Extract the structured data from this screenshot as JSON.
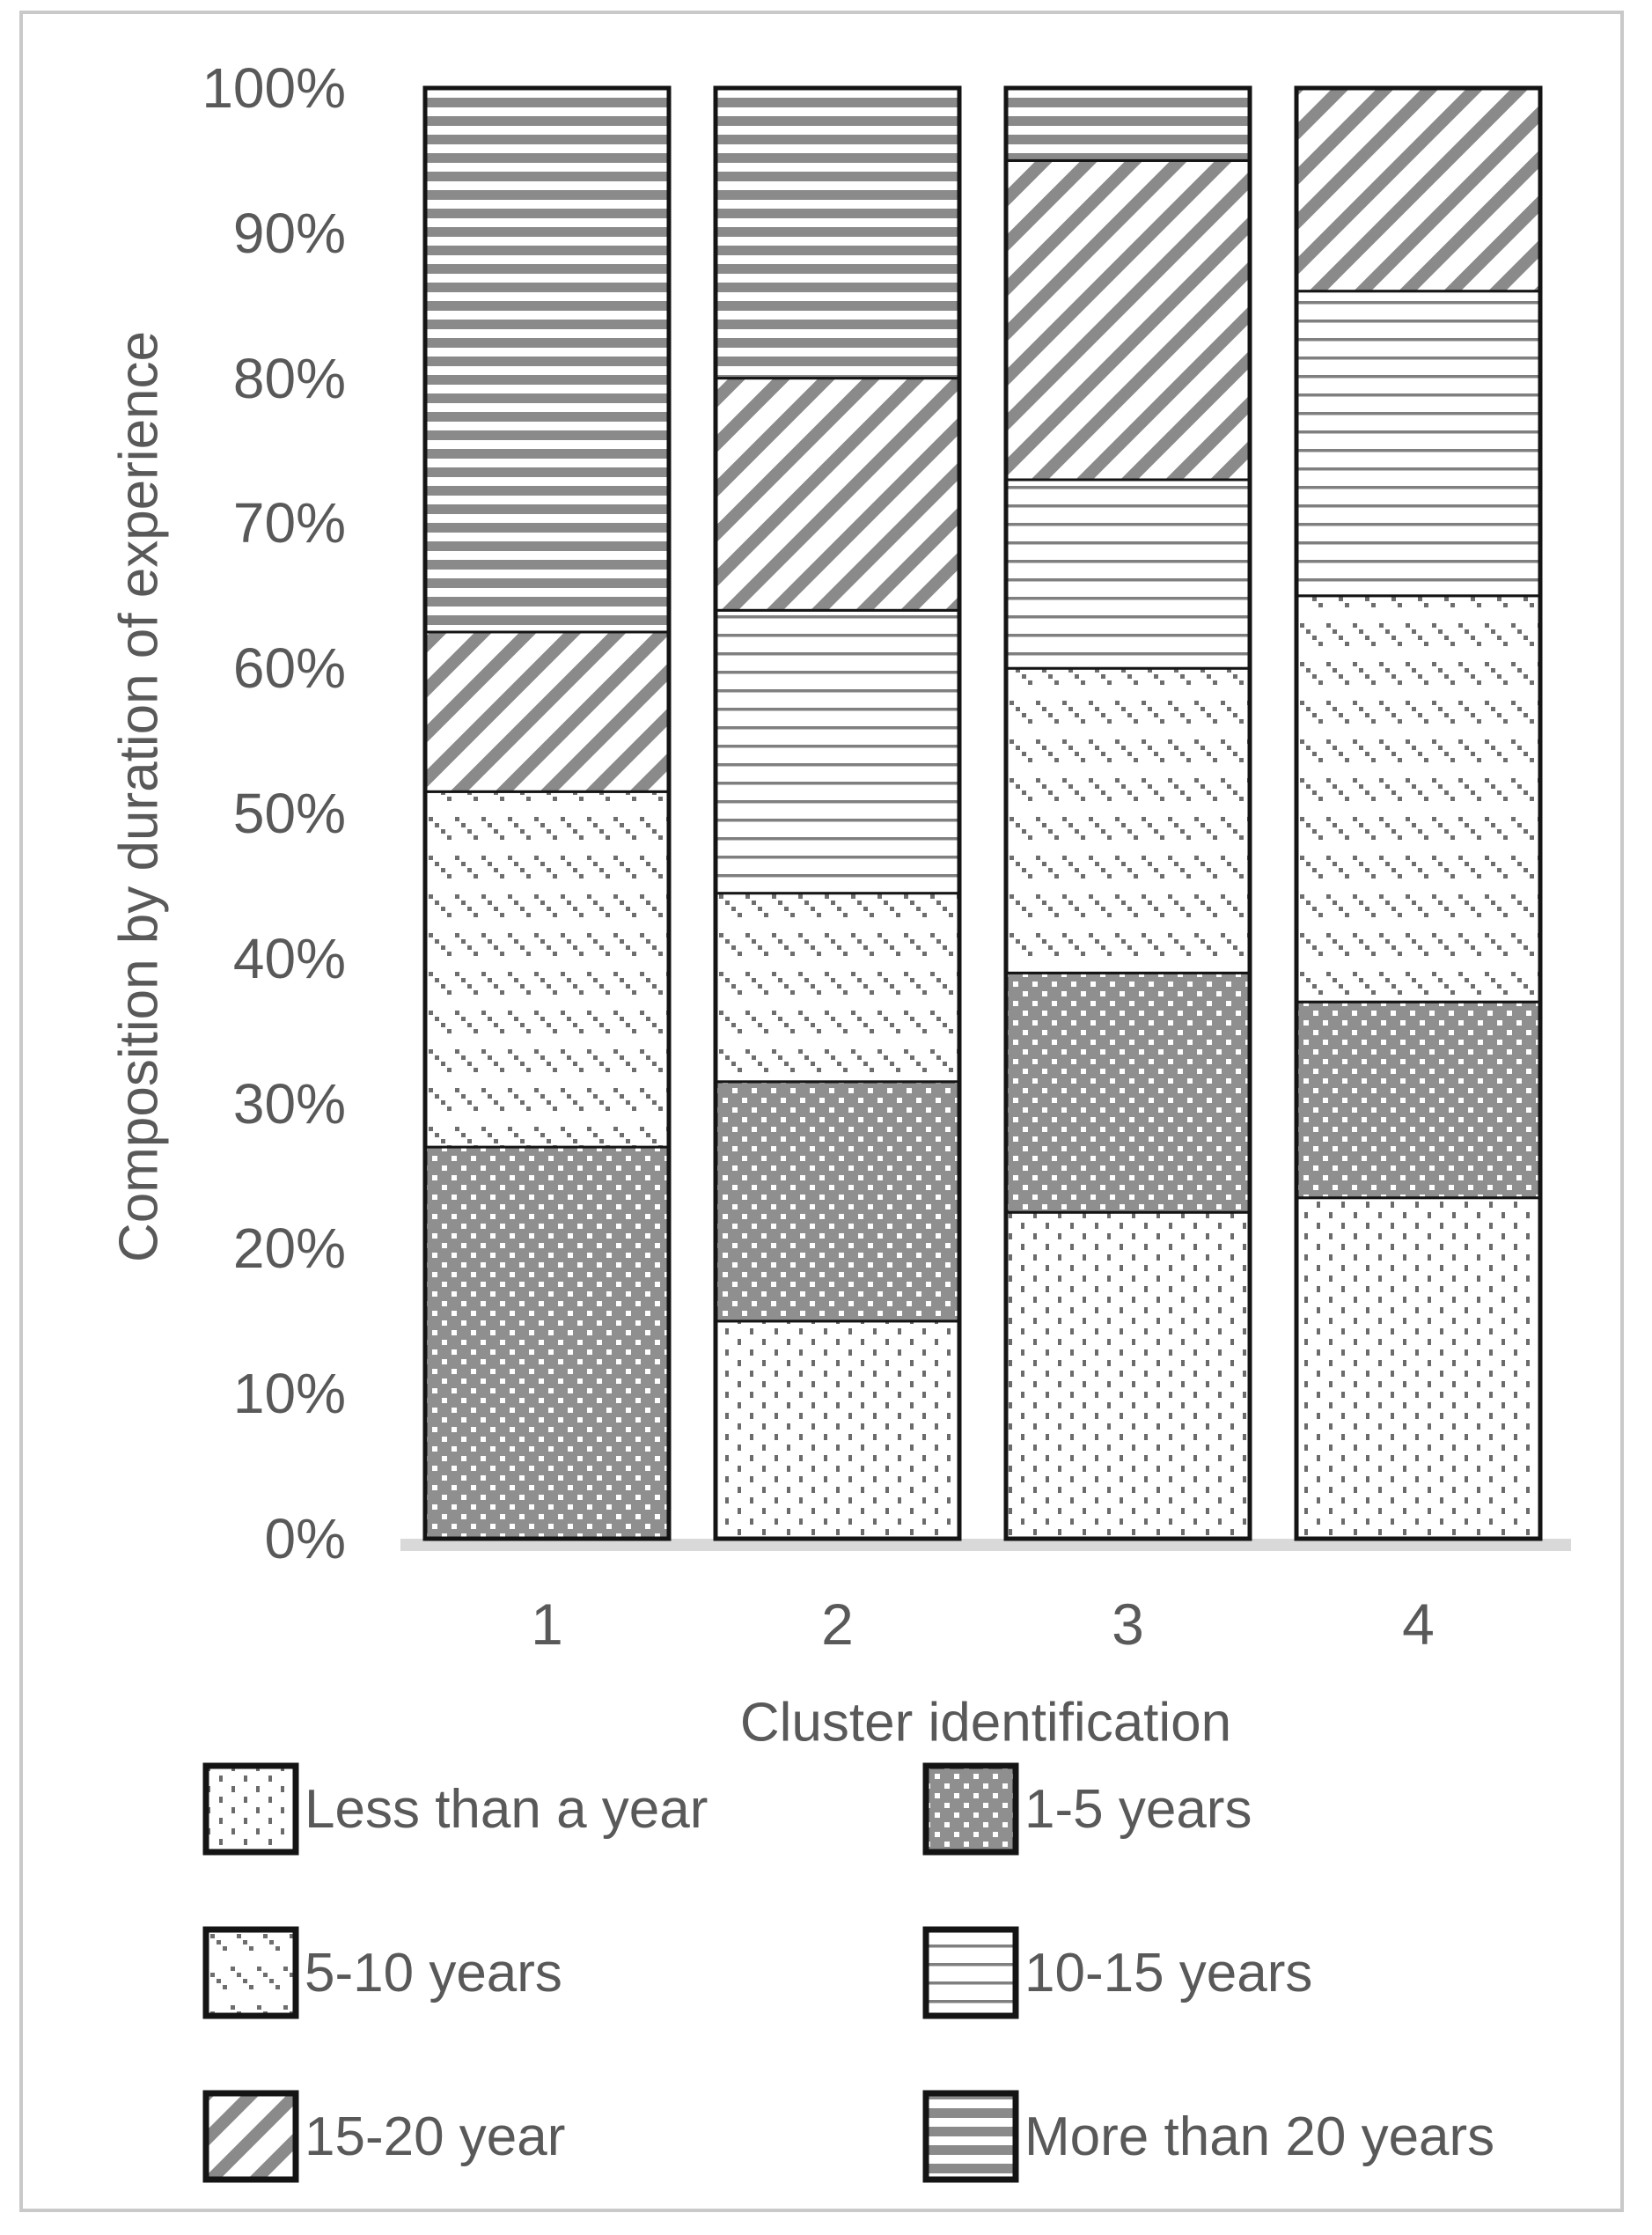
{
  "chart_data": {
    "type": "bar",
    "subtype": "stacked-100-percent",
    "title": "",
    "xlabel": "Cluster identification",
    "ylabel": "Composition by duration of experience",
    "categories": [
      "1",
      "2",
      "3",
      "4"
    ],
    "series": [
      {
        "name": "Less than a year",
        "pattern": "pat-less-than-year",
        "values": [
          0,
          15,
          22.5,
          23.5
        ]
      },
      {
        "name": "1-5 years",
        "pattern": "pat-1-5",
        "values": [
          27,
          16.5,
          16.5,
          13.5
        ]
      },
      {
        "name": "5-10 years",
        "pattern": "pat-5-10",
        "values": [
          24.5,
          13,
          21,
          28
        ]
      },
      {
        "name": "10-15 years",
        "pattern": "pat-10-15",
        "values": [
          0,
          19.5,
          13,
          21
        ]
      },
      {
        "name": "15-20 year",
        "pattern": "pat-15-20",
        "values": [
          11,
          16,
          22,
          14
        ]
      },
      {
        "name": "More than 20 years",
        "pattern": "pat-more-20",
        "values": [
          37.5,
          20,
          5,
          0
        ]
      }
    ],
    "y_axis": {
      "min": 0,
      "max": 100,
      "ticks": [
        "0%",
        "10%",
        "20%",
        "30%",
        "40%",
        "50%",
        "60%",
        "70%",
        "80%",
        "90%",
        "100%"
      ],
      "grid": false
    },
    "legend": {
      "position": "bottom",
      "columns": 2
    },
    "colors": {
      "pattern_gray": "#8a8a8a",
      "thin_line_gray": "#7f7f7f",
      "dot_gray": "#6e6e6e",
      "dark_fill": "#8f8f8f",
      "text": "#595959",
      "bar_border": "#141414",
      "axis_strip": "#d9d9d9",
      "frame": "#c9c9c9"
    }
  }
}
